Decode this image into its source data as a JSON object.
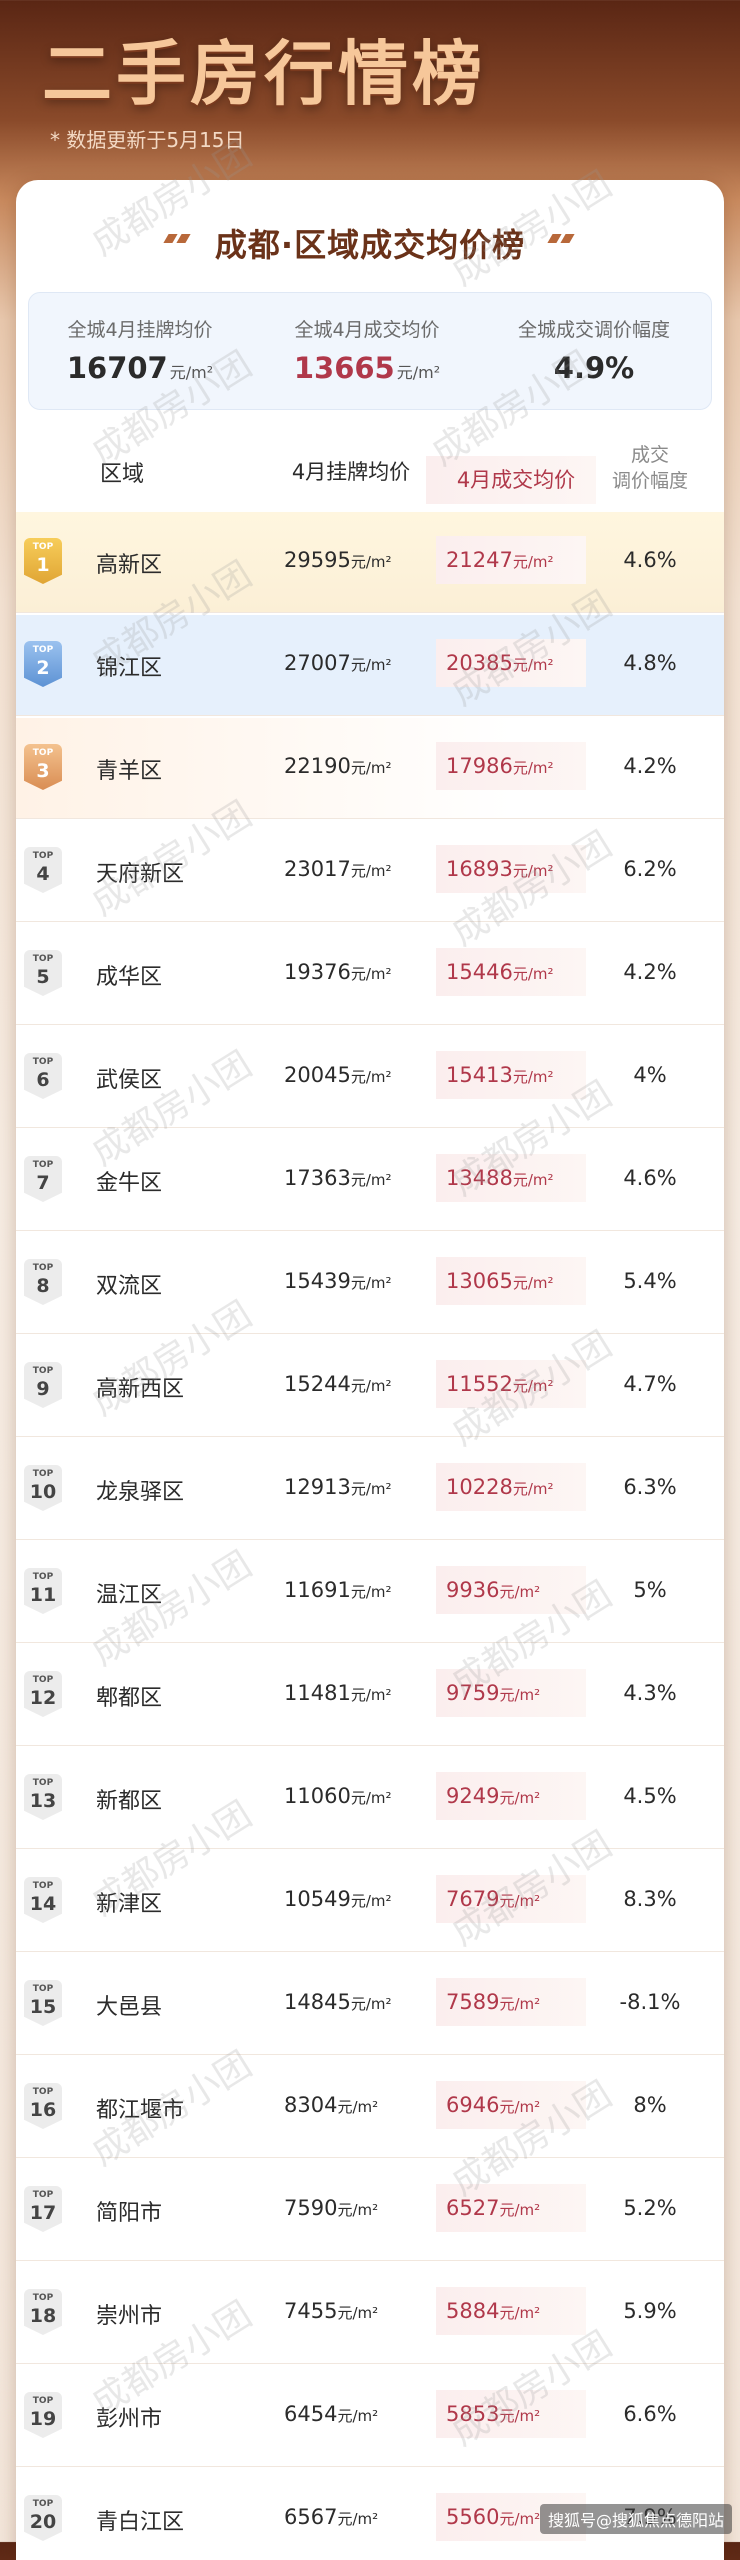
{
  "header": {
    "title": "二手房行情榜",
    "update_note": "* 数据更新于5月15日"
  },
  "card": {
    "title": "成都·区域成交均价榜",
    "summary": [
      {
        "label": "全城4月挂牌均价",
        "value": "16707",
        "unit": "元/m²"
      },
      {
        "label": "全城4月成交均价",
        "value": "13665",
        "unit": "元/m²"
      },
      {
        "label": "全城成交调价幅度",
        "value": "4.9%",
        "unit": ""
      }
    ],
    "columns": {
      "region": "区域",
      "listing": "4月挂牌均价",
      "deal": "4月成交均价",
      "change_line1": "成交",
      "change_line2": "调价幅度"
    },
    "badge_prefix": "TOP",
    "unit": "元/m²",
    "rows": [
      {
        "rank": "1",
        "region": "高新区",
        "listing": "29595",
        "deal": "21247",
        "change": "4.6%"
      },
      {
        "rank": "2",
        "region": "锦江区",
        "listing": "27007",
        "deal": "20385",
        "change": "4.8%"
      },
      {
        "rank": "3",
        "region": "青羊区",
        "listing": "22190",
        "deal": "17986",
        "change": "4.2%"
      },
      {
        "rank": "4",
        "region": "天府新区",
        "listing": "23017",
        "deal": "16893",
        "change": "6.2%"
      },
      {
        "rank": "5",
        "region": "成华区",
        "listing": "19376",
        "deal": "15446",
        "change": "4.2%"
      },
      {
        "rank": "6",
        "region": "武侯区",
        "listing": "20045",
        "deal": "15413",
        "change": "4%"
      },
      {
        "rank": "7",
        "region": "金牛区",
        "listing": "17363",
        "deal": "13488",
        "change": "4.6%"
      },
      {
        "rank": "8",
        "region": "双流区",
        "listing": "15439",
        "deal": "13065",
        "change": "5.4%"
      },
      {
        "rank": "9",
        "region": "高新西区",
        "listing": "15244",
        "deal": "11552",
        "change": "4.7%"
      },
      {
        "rank": "10",
        "region": "龙泉驿区",
        "listing": "12913",
        "deal": "10228",
        "change": "6.3%"
      },
      {
        "rank": "11",
        "region": "温江区",
        "listing": "11691",
        "deal": "9936",
        "change": "5%"
      },
      {
        "rank": "12",
        "region": "郫都区",
        "listing": "11481",
        "deal": "9759",
        "change": "4.3%"
      },
      {
        "rank": "13",
        "region": "新都区",
        "listing": "11060",
        "deal": "9249",
        "change": "4.5%"
      },
      {
        "rank": "14",
        "region": "新津区",
        "listing": "10549",
        "deal": "7679",
        "change": "8.3%"
      },
      {
        "rank": "15",
        "region": "大邑县",
        "listing": "14845",
        "deal": "7589",
        "change": "-8.1%"
      },
      {
        "rank": "16",
        "region": "都江堰市",
        "listing": "8304",
        "deal": "6946",
        "change": "8%"
      },
      {
        "rank": "17",
        "region": "简阳市",
        "listing": "7590",
        "deal": "6527",
        "change": "5.2%"
      },
      {
        "rank": "18",
        "region": "崇州市",
        "listing": "7455",
        "deal": "5884",
        "change": "5.9%"
      },
      {
        "rank": "19",
        "region": "彭州市",
        "listing": "6454",
        "deal": "5853",
        "change": "6.6%"
      },
      {
        "rank": "20",
        "region": "青白江区",
        "listing": "6567",
        "deal": "5560",
        "change": "7.9%"
      }
    ]
  },
  "watermark": "成都房小团",
  "footer_mark": "搜狐号@搜狐焦点德阳站"
}
